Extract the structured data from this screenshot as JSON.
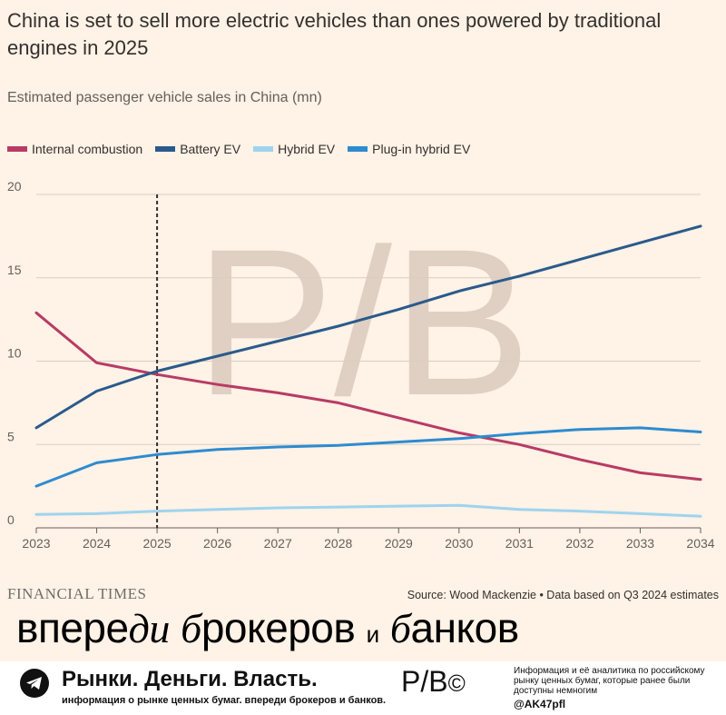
{
  "header": {
    "title": "China is set to sell more electric vehicles than ones powered by traditional engines in 2025",
    "subtitle": "Estimated passenger vehicle sales in China (mn)"
  },
  "chart_data": {
    "type": "line",
    "title": "China is set to sell more electric vehicles than ones powered by traditional engines in 2025",
    "subtitle": "Estimated passenger vehicle sales in China (mn)",
    "xlabel": "",
    "ylabel": "",
    "x": [
      2023,
      2024,
      2025,
      2026,
      2027,
      2028,
      2029,
      2030,
      2031,
      2032,
      2033,
      2034
    ],
    "ylim": [
      0,
      20
    ],
    "yticks": [
      0,
      5,
      10,
      15,
      20
    ],
    "grid": true,
    "legend_placement": "top-left",
    "marker_line_x": 2025,
    "series": [
      {
        "name": "Internal combustion",
        "color": "#b83b65",
        "values": [
          12.9,
          9.9,
          9.2,
          8.6,
          8.1,
          7.5,
          6.6,
          5.7,
          5.0,
          4.1,
          3.3,
          2.9
        ]
      },
      {
        "name": "Battery EV",
        "color": "#2a5a8c",
        "values": [
          6.0,
          8.2,
          9.4,
          10.3,
          11.2,
          12.1,
          13.1,
          14.2,
          15.1,
          16.1,
          17.1,
          18.1
        ]
      },
      {
        "name": "Hybrid EV",
        "color": "#9ed4ee",
        "values": [
          0.8,
          0.85,
          1.0,
          1.1,
          1.2,
          1.25,
          1.3,
          1.35,
          1.1,
          1.0,
          0.85,
          0.7
        ]
      },
      {
        "name": "Plug-in hybrid EV",
        "color": "#2d8bd0",
        "values": [
          2.5,
          3.9,
          4.4,
          4.7,
          4.85,
          4.95,
          5.15,
          5.35,
          5.65,
          5.9,
          6.0,
          5.75
        ]
      }
    ]
  },
  "watermark": {
    "text": "P/B"
  },
  "footer": {
    "ft_logo": "FINANCIAL TIMES",
    "source": "Source: Wood Mackenzie • Data based on Q3 2024 estimates"
  },
  "slogan": {
    "part1": "впере",
    "part2": "ди",
    "part3": "б",
    "part4": "рокеров",
    "part5": "и",
    "part6": "б",
    "part7": "анков"
  },
  "bottom_bar": {
    "brand": "Рынки. Деньги. Власть.",
    "brand_sub": "информация о рынке ценных бумаг. впереди брокеров и банков.",
    "mini_logo": "P/B",
    "copyright": "©",
    "info": "Информация и её аналитика по российскому рынку ценных бумаг, которые ранее были доступны немногим",
    "handle": "@AK47pfl",
    "telegram_icon": "telegram-icon"
  },
  "colors": {
    "background": "#fff2e6",
    "grid": "#d9cec4",
    "axis": "#66605c"
  }
}
